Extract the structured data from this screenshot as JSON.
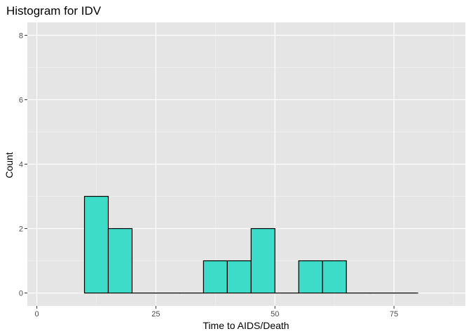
{
  "chart_data": {
    "type": "bar",
    "title": "Histogram for IDV",
    "xlabel": "Time to AIDS/Death",
    "ylabel": "Count",
    "xlim": [
      -2,
      90
    ],
    "ylim": [
      -0.4,
      8.4
    ],
    "x_ticks": [
      0,
      25,
      50,
      75
    ],
    "y_ticks": [
      0,
      2,
      4,
      6,
      8
    ],
    "bin_width": 5,
    "bins": [
      {
        "start": 10,
        "end": 15,
        "count": 3
      },
      {
        "start": 15,
        "end": 20,
        "count": 2
      },
      {
        "start": 20,
        "end": 25,
        "count": 0
      },
      {
        "start": 25,
        "end": 30,
        "count": 0
      },
      {
        "start": 30,
        "end": 35,
        "count": 0
      },
      {
        "start": 35,
        "end": 40,
        "count": 1
      },
      {
        "start": 40,
        "end": 45,
        "count": 1
      },
      {
        "start": 45,
        "end": 50,
        "count": 2
      },
      {
        "start": 50,
        "end": 55,
        "count": 0
      },
      {
        "start": 55,
        "end": 60,
        "count": 1
      },
      {
        "start": 60,
        "end": 65,
        "count": 1
      },
      {
        "start": 65,
        "end": 70,
        "count": 0
      },
      {
        "start": 70,
        "end": 75,
        "count": 0
      },
      {
        "start": 75,
        "end": 80,
        "count": 0
      }
    ],
    "bar_fill": "#3ddcc9",
    "bar_stroke": "#000000",
    "panel_background": "#e5e5e5",
    "grid": true
  }
}
